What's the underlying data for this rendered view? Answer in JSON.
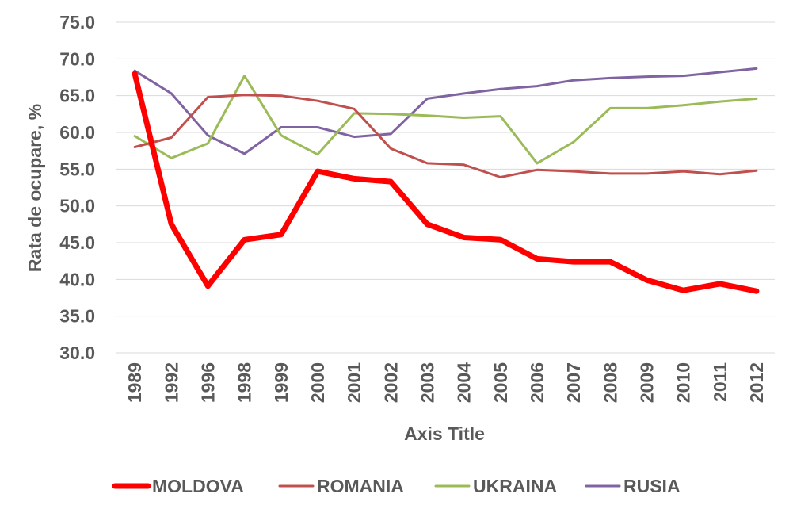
{
  "chart_data": {
    "type": "line",
    "title": "",
    "xlabel": "Axis Title",
    "ylabel": "Rata de ocupare, %",
    "ylim": [
      30,
      75
    ],
    "ytick_step": 5,
    "ytick_labels": [
      "30.0",
      "35.0",
      "40.0",
      "45.0",
      "50.0",
      "55.0",
      "60.0",
      "65.0",
      "70.0",
      "75.0"
    ],
    "grid": true,
    "legend_position": "bottom",
    "categories": [
      "1989",
      "1992",
      "1996",
      "1998",
      "1999",
      "2000",
      "2001",
      "2002",
      "2003",
      "2004",
      "2005",
      "2006",
      "2007",
      "2008",
      "2009",
      "2010",
      "2011",
      "2012"
    ],
    "series": [
      {
        "name": "MOLDOVA",
        "color": "#ff0000",
        "emphasis": "thick",
        "values": [
          68.0,
          47.5,
          39.1,
          45.4,
          46.1,
          54.7,
          53.7,
          53.3,
          47.5,
          45.7,
          45.4,
          42.8,
          42.4,
          42.4,
          39.9,
          38.5,
          39.4,
          38.4
        ]
      },
      {
        "name": "ROMANIA",
        "color": "#c0504d",
        "emphasis": "normal",
        "values": [
          58.0,
          59.3,
          64.8,
          65.1,
          65.0,
          64.3,
          63.2,
          57.8,
          55.8,
          55.6,
          53.9,
          54.9,
          54.7,
          54.4,
          54.4,
          54.7,
          54.3,
          54.8
        ]
      },
      {
        "name": "UKRAINA",
        "color": "#9bbb59",
        "emphasis": "normal",
        "values": [
          59.5,
          56.5,
          58.5,
          67.7,
          59.6,
          57.0,
          62.6,
          62.5,
          62.3,
          62.0,
          62.2,
          55.8,
          58.7,
          63.3,
          63.3,
          63.7,
          64.2,
          64.6
        ]
      },
      {
        "name": "RUSIA",
        "color": "#8064a2",
        "emphasis": "normal",
        "values": [
          68.4,
          65.3,
          59.6,
          57.1,
          60.7,
          60.7,
          59.4,
          59.8,
          64.6,
          65.3,
          65.9,
          66.3,
          67.1,
          67.4,
          67.6,
          67.7,
          68.2,
          68.7
        ]
      }
    ]
  }
}
